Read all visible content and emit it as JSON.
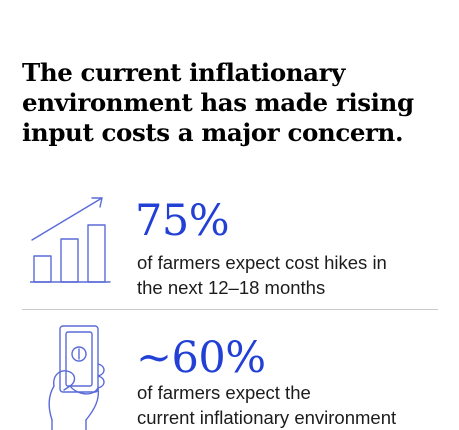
{
  "headline": {
    "lines": [
      "The current inflationary",
      "environment has made rising",
      "input costs a major concern."
    ]
  },
  "stats": [
    {
      "icon": "rising-bar-chart-icon",
      "value": "75%",
      "description": [
        "of farmers expect cost hikes in",
        "the next 12–18 months"
      ]
    },
    {
      "icon": "hand-holding-cash-icon",
      "value": "~60%",
      "description": [
        "of farmers expect the",
        "current inflationary environment"
      ]
    }
  ],
  "colors": {
    "accent": "#2240d6",
    "icon_stroke": "#5a6bd8",
    "text": "#1c1c1c",
    "divider": "#c9c9c9",
    "background": "#ffffff"
  }
}
